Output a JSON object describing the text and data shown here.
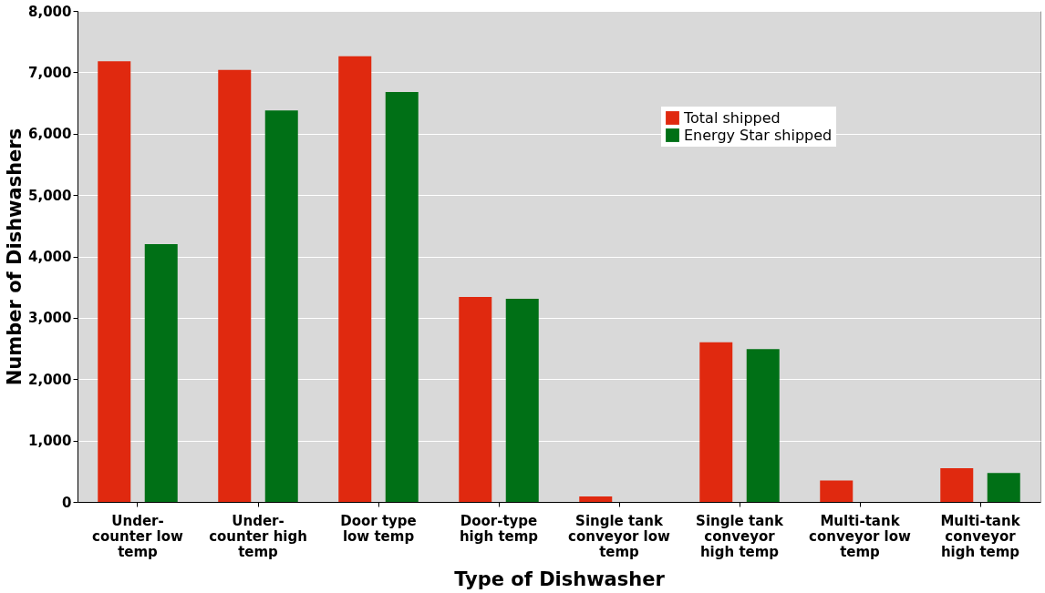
{
  "chart_data": {
    "type": "bar",
    "xlabel": "Type of Dishwasher",
    "ylabel": "Number of Dishwashers",
    "categories": [
      "Under-counter low temp",
      "Under-counter high temp",
      "Door type low temp",
      "Door-type high temp",
      "Single tank conveyor low temp",
      "Single tank conveyor high temp",
      "Multi-tank conveyor low temp",
      "Multi-tank conveyor high temp"
    ],
    "series": [
      {
        "name": "Total shipped",
        "color": "#e0290f",
        "values": [
          7180,
          7040,
          7260,
          3340,
          90,
          2600,
          350,
          550
        ]
      },
      {
        "name": "Energy Star shipped",
        "color": "#007016",
        "values": [
          4200,
          6380,
          6680,
          3310,
          0,
          2490,
          0,
          470
        ]
      }
    ],
    "ylim": [
      0,
      8000
    ],
    "yticks": [
      0,
      {
        "value": 1000,
        "label": "1,000"
      },
      {
        "value": 2000,
        "label": "2,000"
      },
      {
        "value": 3000,
        "label": "3,000"
      },
      {
        "value": 4000,
        "label": "4,000"
      },
      {
        "value": 5000,
        "label": "5,000"
      },
      {
        "value": 6000,
        "label": "6,000"
      },
      {
        "value": 7000,
        "label": "7,000"
      },
      {
        "value": 8000,
        "label": "8,000"
      }
    ],
    "grid": "y",
    "legend": "top right"
  }
}
